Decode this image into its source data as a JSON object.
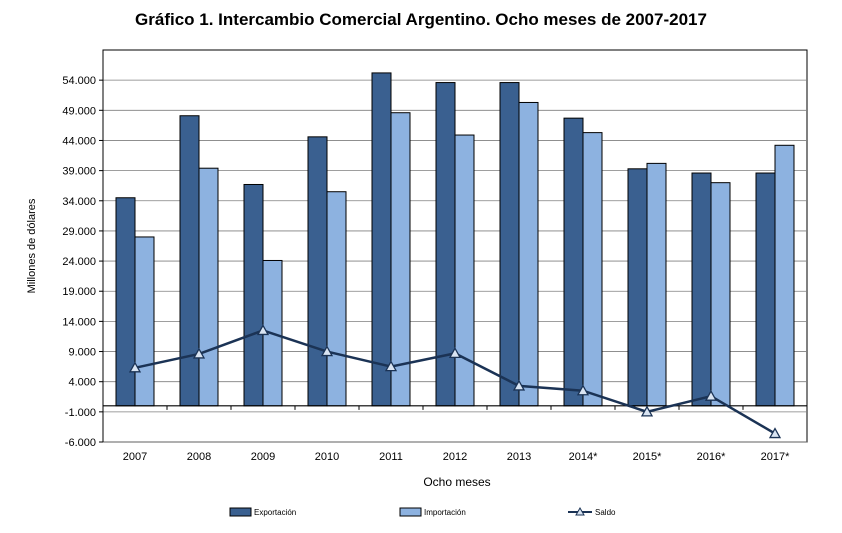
{
  "chart_data": {
    "type": "bar",
    "title": "Gráfico 1. Intercambio Comercial Argentino. Ocho meses de 2007-2017",
    "xlabel": "Ocho meses",
    "ylabel": "Millones de dólares",
    "categories": [
      "2007",
      "2008",
      "2009",
      "2010",
      "2011",
      "2012",
      "2013",
      "2014*",
      "2015*",
      "2016*",
      "2017*"
    ],
    "yticks": [
      "-6.000",
      "-1.000",
      "4.000",
      "9.000",
      "14.000",
      "19.000",
      "24.000",
      "29.000",
      "34.000",
      "39.000",
      "44.000",
      "49.000",
      "54.000"
    ],
    "ylim": [
      -6000,
      59000
    ],
    "grid": true,
    "legend_position": "bottom",
    "series": [
      {
        "name": "Exportación",
        "kind": "bar",
        "color": "#3a6090",
        "values": [
          34500,
          48100,
          36700,
          44600,
          55200,
          53600,
          53600,
          47700,
          39300,
          38600,
          38600
        ]
      },
      {
        "name": "Importación",
        "kind": "bar",
        "color": "#8db2e0",
        "values": [
          28000,
          39400,
          24100,
          35500,
          48600,
          44900,
          50300,
          45300,
          40200,
          37000,
          43200
        ]
      },
      {
        "name": "Saldo",
        "kind": "line",
        "color": "#1b3355",
        "values": [
          6300,
          8600,
          12500,
          9000,
          6500,
          8700,
          3300,
          2500,
          -1000,
          1600,
          -4600
        ]
      }
    ]
  }
}
